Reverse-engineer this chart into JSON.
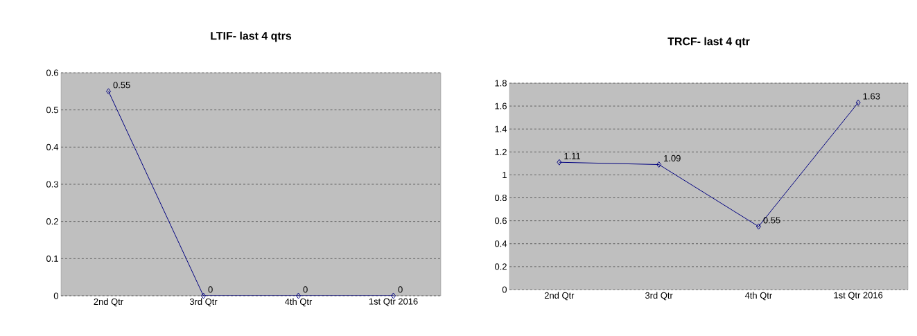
{
  "chart_data": [
    {
      "type": "line",
      "title": "LTIF- last 4 qtrs",
      "categories": [
        "2nd Qtr",
        "3rd Qtr",
        "4th Qtr",
        "1st Qtr 2016"
      ],
      "series": [
        {
          "color": "#000080",
          "values": [
            0.55,
            0,
            0,
            0
          ],
          "value_labels": [
            "0.55",
            "0",
            "0",
            "0"
          ]
        }
      ],
      "ylim": [
        0,
        0.6
      ],
      "yticks": [
        0,
        0.1,
        0.2,
        0.3,
        0.4,
        0.5,
        0.6
      ],
      "grid": "y",
      "marker": "diamond",
      "line_style": "solid"
    },
    {
      "type": "line",
      "title": "TRCF- last 4 qtr",
      "categories": [
        "2nd Qtr",
        "3rd Qtr",
        "4th Qtr",
        "1st Qtr 2016"
      ],
      "series": [
        {
          "color": "#000080",
          "values": [
            1.11,
            1.09,
            0.55,
            1.63
          ],
          "value_labels": [
            "1.11",
            "1.09",
            "0.55",
            "1.63"
          ]
        }
      ],
      "ylim": [
        0,
        1.8
      ],
      "yticks": [
        0,
        0.2,
        0.4,
        0.6,
        0.8,
        1,
        1.2,
        1.4,
        1.6,
        1.8
      ],
      "grid": "y",
      "marker": "diamond",
      "line_style": "solid"
    }
  ]
}
